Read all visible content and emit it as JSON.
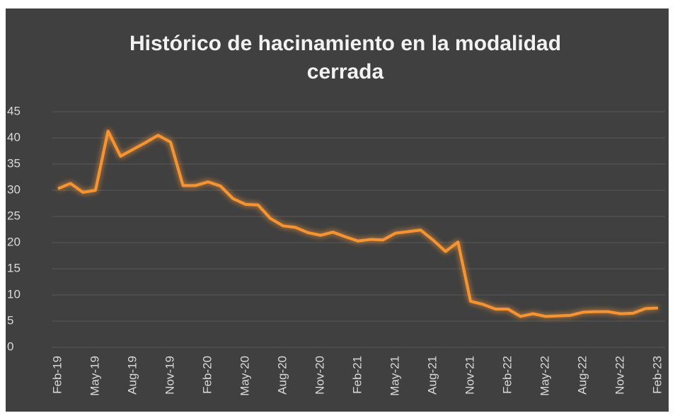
{
  "chart_data": {
    "type": "line",
    "title": "Histórico de hacinamiento en la modalidad cerrada",
    "categories": [
      "Feb-19",
      null,
      null,
      "May-19",
      null,
      null,
      "Aug-19",
      null,
      null,
      "Nov-19",
      null,
      null,
      "Feb-20",
      null,
      null,
      "May-20",
      null,
      null,
      "Aug-20",
      null,
      null,
      "Nov-20",
      null,
      null,
      "Feb-21",
      null,
      null,
      "May-21",
      null,
      null,
      "Aug-21",
      null,
      null,
      "Nov-21",
      null,
      null,
      "Feb-22",
      null,
      null,
      "May-22",
      null,
      null,
      "Aug-22",
      null,
      null,
      "Nov-22",
      null,
      null,
      "Feb-23"
    ],
    "values": [
      30.3,
      31.3,
      29.6,
      30.0,
      41.3,
      36.5,
      37.8,
      39.1,
      40.5,
      39.2,
      30.9,
      30.9,
      31.6,
      30.8,
      28.4,
      27.3,
      27.2,
      24.6,
      23.2,
      22.9,
      21.9,
      21.4,
      22.0,
      21.1,
      20.3,
      20.6,
      20.5,
      21.8,
      22.1,
      22.4,
      20.5,
      18.3,
      20.1,
      8.8,
      8.2,
      7.3,
      7.3,
      5.9,
      6.4,
      5.9,
      6.0,
      6.1,
      6.7,
      6.8,
      6.8,
      6.4,
      6.5,
      7.4,
      7.5
    ],
    "color": "#f79433",
    "ylim": [
      0,
      45
    ],
    "yticks": [
      0,
      5,
      10,
      15,
      20,
      25,
      30,
      35,
      40,
      45
    ],
    "grid": true
  }
}
